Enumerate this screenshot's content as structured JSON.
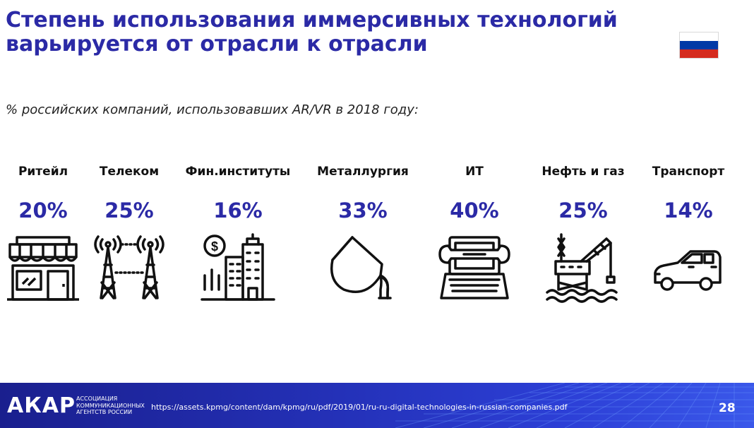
{
  "title": {
    "line1": "Степень использования иммерсивных технологий",
    "line2": "варьируется от отрасли к отрасли"
  },
  "flag": {
    "colors": [
      "#ffffff",
      "#0039a6",
      "#d52b1e"
    ]
  },
  "subtitle": "% российских компаний, использовавших AR/VR в 2018 году:",
  "sectors": [
    {
      "label": "Ритейл",
      "value": "20%",
      "icon": "storefront-icon"
    },
    {
      "label": "Телеком",
      "value": "25%",
      "icon": "telecom-towers-icon"
    },
    {
      "label": "Фин.институты",
      "value": "16%",
      "icon": "finance-buildings-icon"
    },
    {
      "label": "Металлургия",
      "value": "33%",
      "icon": "ladle-pouring-icon"
    },
    {
      "label": "ИТ",
      "value": "40%",
      "icon": "laptop-wrench-icon"
    },
    {
      "label": "Нефть и газ",
      "value": "25%",
      "icon": "oil-platform-icon"
    },
    {
      "label": "Транспорт",
      "value": "14%",
      "icon": "car-icon"
    }
  ],
  "footer": {
    "logo": "АКАР",
    "logo_sub": [
      "АССОЦИАЦИЯ",
      "КОММУНИКАЦИОННЫХ",
      "АГЕНТСТВ РОССИИ"
    ],
    "source": "https://assets.kpmg/content/dam/kpmg/ru/pdf/2019/01/ru-ru-digital-technologies-in-russian-companies.pdf",
    "page": "28"
  },
  "colors": {
    "accent": "#2b2aa6",
    "footer_bg": "#2431b8",
    "icon_stroke": "#111111"
  }
}
